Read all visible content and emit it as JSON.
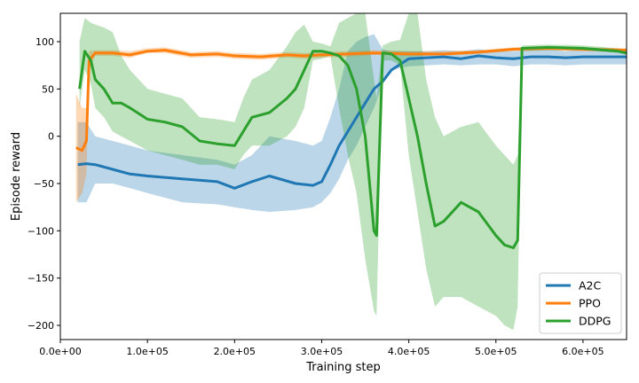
{
  "chart_data": {
    "type": "line",
    "xlabel": "Training step",
    "ylabel": "Episode reward",
    "xlim": [
      0,
      650000
    ],
    "ylim": [
      -215,
      130
    ],
    "xticks": [
      0,
      100000,
      200000,
      300000,
      400000,
      500000,
      600000
    ],
    "xtick_labels": [
      "0.0e+00",
      "1.0e+05",
      "2.0e+05",
      "3.0e+05",
      "4.0e+05",
      "5.0e+05",
      "6.0e+05"
    ],
    "yticks": [
      -200,
      -150,
      -100,
      -50,
      0,
      50,
      100
    ],
    "ytick_labels": [
      "−200",
      "−150",
      "−100",
      "−50",
      "0",
      "50",
      "100"
    ],
    "grid": false,
    "legend_position": "bottom-right",
    "series": [
      {
        "name": "A2C",
        "color": "#1f77b4",
        "x": [
          20000,
          30000,
          40000,
          60000,
          80000,
          100000,
          140000,
          180000,
          200000,
          220000,
          240000,
          270000,
          290000,
          300000,
          310000,
          320000,
          330000,
          340000,
          350000,
          360000,
          370000,
          380000,
          400000,
          420000,
          440000,
          460000,
          480000,
          500000,
          520000,
          540000,
          560000,
          580000,
          600000,
          620000,
          640000,
          650000
        ],
        "y": [
          -30,
          -29,
          -30,
          -35,
          -40,
          -42,
          -45,
          -48,
          -55,
          -48,
          -42,
          -50,
          -52,
          -48,
          -30,
          -10,
          5,
          20,
          35,
          50,
          58,
          70,
          82,
          83,
          84,
          82,
          85,
          83,
          82,
          84,
          84,
          83,
          84,
          84,
          84,
          84
        ],
        "lower": [
          -70,
          -70,
          -50,
          -50,
          -55,
          -60,
          -70,
          -72,
          -75,
          -78,
          -80,
          -78,
          -75,
          -70,
          -60,
          -45,
          -25,
          -10,
          10,
          30,
          55,
          70,
          74,
          75,
          76,
          75,
          76,
          76,
          74,
          76,
          76,
          75,
          76,
          76,
          76,
          76
        ],
        "upper": [
          15,
          15,
          0,
          -5,
          -10,
          -15,
          -20,
          -25,
          -30,
          -20,
          0,
          -5,
          -10,
          -5,
          20,
          50,
          90,
          100,
          105,
          108,
          92,
          90,
          90,
          90,
          91,
          90,
          92,
          90,
          90,
          91,
          92,
          90,
          92,
          92,
          92,
          92
        ]
      },
      {
        "name": "PPO",
        "color": "#ff7f0e",
        "x": [
          18000,
          25000,
          30000,
          33000,
          40000,
          60000,
          80000,
          100000,
          120000,
          150000,
          180000,
          200000,
          230000,
          260000,
          280000,
          300000,
          330000,
          360000,
          400000,
          440000,
          480000,
          520000,
          560000,
          600000,
          650000
        ],
        "y": [
          -12,
          -15,
          -5,
          80,
          88,
          88,
          86,
          90,
          91,
          86,
          87,
          85,
          84,
          86,
          85,
          86,
          87,
          88,
          87,
          87,
          89,
          92,
          93,
          92,
          91
        ],
        "lower": [
          -70,
          -60,
          -40,
          70,
          85,
          85,
          83,
          88,
          88,
          83,
          84,
          82,
          81,
          83,
          82,
          83,
          84,
          86,
          85,
          85,
          87,
          90,
          91,
          90,
          89
        ],
        "upper": [
          45,
          30,
          30,
          90,
          91,
          91,
          90,
          93,
          94,
          89,
          90,
          88,
          87,
          89,
          88,
          89,
          90,
          91,
          90,
          90,
          91,
          94,
          95,
          94,
          93
        ]
      },
      {
        "name": "DDPG",
        "color": "#2ca02c",
        "x": [
          22000,
          28000,
          35000,
          40000,
          50000,
          60000,
          70000,
          80000,
          100000,
          120000,
          140000,
          160000,
          180000,
          200000,
          210000,
          220000,
          240000,
          260000,
          270000,
          280000,
          290000,
          300000,
          310000,
          320000,
          330000,
          340000,
          350000,
          360000,
          363000,
          370000,
          380000,
          390000,
          400000,
          410000,
          420000,
          430000,
          440000,
          460000,
          480000,
          500000,
          510000,
          520000,
          525000,
          530000,
          560000,
          600000,
          640000,
          650000
        ],
        "y": [
          50,
          90,
          80,
          60,
          50,
          35,
          35,
          30,
          18,
          15,
          10,
          -5,
          -8,
          -10,
          5,
          20,
          25,
          40,
          50,
          70,
          90,
          90,
          88,
          85,
          75,
          50,
          0,
          -100,
          -105,
          88,
          87,
          80,
          40,
          0,
          -50,
          -95,
          -90,
          -70,
          -80,
          -105,
          -115,
          -118,
          -110,
          93,
          94,
          93,
          90,
          88
        ],
        "lower": [
          30,
          70,
          55,
          30,
          20,
          5,
          0,
          -5,
          -15,
          -20,
          -25,
          -30,
          -30,
          -35,
          -20,
          -10,
          -10,
          0,
          10,
          30,
          80,
          82,
          85,
          30,
          -20,
          -60,
          -130,
          -185,
          -190,
          80,
          80,
          75,
          -20,
          -80,
          -140,
          -180,
          -170,
          -170,
          -180,
          -190,
          -200,
          -205,
          -180,
          90,
          91,
          91,
          88,
          86
        ],
        "upper": [
          100,
          125,
          120,
          118,
          115,
          110,
          85,
          70,
          50,
          45,
          40,
          20,
          18,
          15,
          40,
          60,
          70,
          95,
          110,
          118,
          100,
          98,
          95,
          120,
          125,
          130,
          130,
          60,
          40,
          96,
          100,
          102,
          135,
          135,
          60,
          20,
          0,
          10,
          15,
          -10,
          -20,
          -30,
          -20,
          96,
          97,
          96,
          93,
          91
        ]
      }
    ]
  }
}
